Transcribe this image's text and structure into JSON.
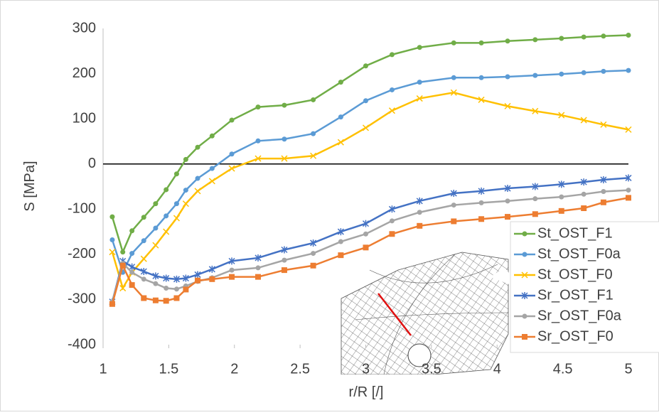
{
  "chart_data": {
    "type": "line",
    "x": [
      1.07,
      1.15,
      1.22,
      1.31,
      1.4,
      1.48,
      1.56,
      1.63,
      1.72,
      1.83,
      1.98,
      2.18,
      2.38,
      2.6,
      2.81,
      3.0,
      3.2,
      3.41,
      3.67,
      3.88,
      4.08,
      4.29,
      4.49,
      4.66,
      4.81,
      5.0
    ],
    "series": [
      {
        "name": "St_OST_F1",
        "color": "#70ad47",
        "marker": "circle",
        "values": [
          -117,
          -195,
          -148,
          -118,
          -88,
          -57,
          -22,
          10,
          37,
          62,
          97,
          126,
          130,
          142,
          181,
          217,
          242,
          258,
          268,
          268,
          272,
          275,
          278,
          281,
          283,
          285
        ]
      },
      {
        "name": "St_OST_F0a",
        "color": "#5b9bd5",
        "marker": "circle",
        "values": [
          -168,
          -240,
          -198,
          -170,
          -142,
          -115,
          -88,
          -58,
          -32,
          -10,
          22,
          51,
          55,
          67,
          104,
          140,
          164,
          181,
          191,
          191,
          193,
          196,
          199,
          202,
          205,
          207
        ]
      },
      {
        "name": "St_OST_F0",
        "color": "#ffc000",
        "marker": "x",
        "values": [
          -195,
          -275,
          -240,
          -210,
          -180,
          -150,
          -120,
          -88,
          -60,
          -38,
          -10,
          12,
          12,
          18,
          48,
          80,
          118,
          145,
          158,
          142,
          128,
          117,
          108,
          97,
          87,
          76
        ]
      },
      {
        "name": "Sr_OST_F1",
        "color": "#4472c4",
        "marker": "star",
        "values": [
          -305,
          -215,
          -228,
          -238,
          -248,
          -253,
          -255,
          -253,
          -245,
          -233,
          -215,
          -208,
          -190,
          -175,
          -150,
          -132,
          -100,
          -82,
          -65,
          -60,
          -54,
          -50,
          -45,
          -40,
          -35,
          -31
        ]
      },
      {
        "name": "Sr_OST_F0a",
        "color": "#a5a5a5",
        "marker": "circle",
        "values": [
          -305,
          -220,
          -240,
          -255,
          -265,
          -275,
          -277,
          -270,
          -260,
          -252,
          -235,
          -230,
          -213,
          -198,
          -172,
          -155,
          -126,
          -107,
          -91,
          -86,
          -82,
          -77,
          -73,
          -67,
          -61,
          -58
        ]
      },
      {
        "name": "Sr_OST_F0",
        "color": "#ed7d31",
        "marker": "square",
        "values": [
          -310,
          -225,
          -268,
          -297,
          -302,
          -303,
          -297,
          -278,
          -258,
          -255,
          -250,
          -250,
          -235,
          -225,
          -202,
          -185,
          -155,
          -137,
          -127,
          -122,
          -117,
          -111,
          -104,
          -98,
          -85,
          -75
        ]
      }
    ],
    "x_label": "r/R [/]",
    "y_label": "S [MPa]",
    "xlim": [
      1,
      5
    ],
    "xticks": [
      1,
      1.5,
      2,
      2.5,
      3,
      3.5,
      4,
      4.5,
      5
    ],
    "ylim": [
      -400,
      300
    ],
    "yticks": [
      -400,
      -300,
      -200,
      -100,
      0,
      100,
      200,
      300
    ],
    "grid": false,
    "legend": "right"
  }
}
